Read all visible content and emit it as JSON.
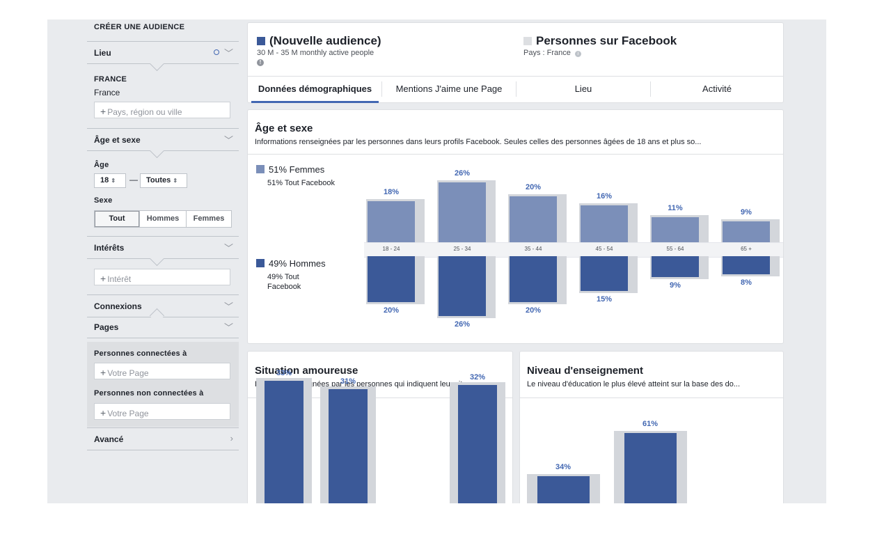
{
  "sidebar": {
    "title": "CRÉER UNE AUDIENCE",
    "location": {
      "label": "Lieu",
      "country_heading": "FRANCE",
      "country": "France",
      "placeholder": "Pays, région ou ville"
    },
    "age_sex": {
      "label": "Âge et sexe",
      "age_label": "Âge",
      "age_from": "18",
      "age_to": "Toutes",
      "dash": "—",
      "sex_label": "Sexe",
      "sex_options": [
        "Tout",
        "Hommes",
        "Femmes"
      ]
    },
    "interests": {
      "label": "Intérêts",
      "placeholder": "Intérêt"
    },
    "connections": {
      "label": "Connexions"
    },
    "pages": {
      "label": "Pages",
      "connected_label": "Personnes connectées à",
      "connected_placeholder": "Votre Page",
      "not_connected_label": "Personnes non connectées à",
      "not_connected_placeholder": "Votre Page"
    },
    "advanced": {
      "label": "Avancé"
    }
  },
  "header": {
    "audience_title": "(Nouvelle audience)",
    "audience_sub": "30 M - 35 M monthly active people",
    "facebook_title": "Personnes sur Facebook",
    "facebook_sub": "Pays : France",
    "audience_color": "#3b5998",
    "facebook_color": "#dddfe2"
  },
  "tabs": [
    "Données démographiques",
    "Mentions J'aime une Page",
    "Lieu",
    "Activité"
  ],
  "age_sex_card": {
    "title": "Âge et sexe",
    "description": "Informations renseignées par les personnes dans leurs profils Facebook. Seules celles des personnes âgées de 18 ans et plus so...",
    "women_legend": "51% Femmes",
    "women_sub": "51% Tout Facebook",
    "men_legend": "49% Hommes",
    "men_sub_1": "49% Tout",
    "men_sub_2": "Facebook"
  },
  "relationship_card": {
    "title": "Situation amoureuse",
    "description": "Données renseignées par les personnes qui indiquent leur sit..."
  },
  "education_card": {
    "title": "Niveau d'enseignement",
    "description": "Le niveau d'éducation le plus élevé atteint sur la base des do..."
  },
  "colors": {
    "women": "#7b8fb9",
    "men": "#3b5998",
    "benchmark": "#d3d6db",
    "accent": "#4267b2"
  },
  "chart_data": [
    {
      "type": "bar",
      "name": "age_sex",
      "categories": [
        "18 - 24",
        "25 - 34",
        "35 - 44",
        "45 - 54",
        "55 - 64",
        "65 +"
      ],
      "series": [
        {
          "name": "Femmes",
          "values": [
            18,
            26,
            20,
            16,
            11,
            9
          ],
          "labels": [
            "18%",
            "26%",
            "20%",
            "16%",
            "11%",
            "9%"
          ]
        },
        {
          "name": "Hommes",
          "values": [
            20,
            26,
            20,
            15,
            9,
            8
          ],
          "labels": [
            "20%",
            "26%",
            "20%",
            "15%",
            "9%",
            "8%"
          ]
        }
      ]
    },
    {
      "type": "bar",
      "name": "relationship",
      "categories": [
        "",
        "",
        ""
      ],
      "values": [
        33,
        31,
        32
      ],
      "labels": [
        "33%",
        "31%",
        "32%"
      ]
    },
    {
      "type": "bar",
      "name": "education",
      "categories": [
        "",
        ""
      ],
      "values": [
        34,
        61
      ],
      "labels": [
        "34%",
        "61%"
      ]
    }
  ]
}
